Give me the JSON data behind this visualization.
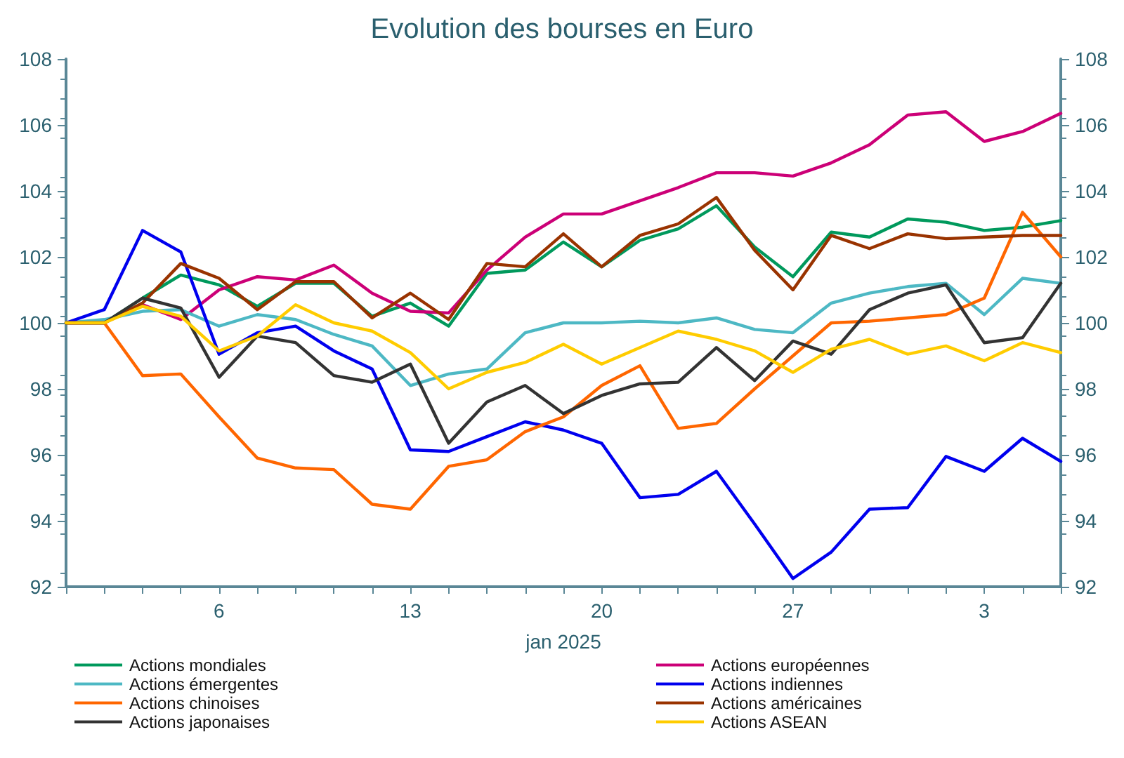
{
  "chart_data": {
    "type": "line",
    "title": "Evolution des bourses en Euro",
    "xlabel": "jan 2025",
    "categories": [
      null,
      null,
      null,
      null,
      "6",
      null,
      null,
      null,
      null,
      "13",
      null,
      null,
      null,
      null,
      "20",
      null,
      null,
      null,
      null,
      "27",
      null,
      null,
      null,
      null,
      "3",
      null,
      null
    ],
    "ylim": [
      92,
      108
    ],
    "yticks": [
      92,
      94,
      96,
      98,
      100,
      102,
      104,
      106,
      108
    ],
    "y2lim": [
      92,
      108
    ],
    "y2ticks": [
      92,
      94,
      96,
      98,
      100,
      102,
      104,
      106,
      108
    ],
    "grid": false,
    "legend": "bottom",
    "marker": "none",
    "line_style": "solid",
    "series": [
      {
        "name": "Actions mondiales",
        "color": "#00995c",
        "values": [
          100,
          100,
          100.75,
          101.45,
          101.15,
          100.5,
          101.2,
          101.2,
          100.2,
          100.6,
          99.9,
          101.5,
          101.6,
          102.45,
          101.7,
          102.5,
          102.85,
          103.55,
          102.3,
          101.4,
          102.75,
          102.6,
          103.15,
          103.05,
          102.8,
          102.9,
          103.1
        ]
      },
      {
        "name": "Actions européennes",
        "color": "#cc0077",
        "values": [
          100,
          100,
          100.55,
          100.1,
          101.0,
          101.4,
          101.3,
          101.75,
          100.9,
          100.35,
          100.3,
          101.6,
          102.6,
          103.3,
          103.3,
          103.7,
          104.1,
          104.55,
          104.55,
          104.45,
          104.85,
          105.4,
          106.3,
          106.4,
          105.5,
          105.8,
          106.35
        ]
      },
      {
        "name": "Actions émergentes",
        "color": "#4db8c4",
        "values": [
          100,
          100.1,
          100.35,
          100.4,
          99.9,
          100.25,
          100.1,
          99.65,
          99.3,
          98.1,
          98.45,
          98.6,
          99.7,
          100.0,
          100.0,
          100.05,
          100.0,
          100.15,
          99.8,
          99.7,
          100.6,
          100.9,
          101.1,
          101.2,
          100.25,
          101.35,
          101.2
        ]
      },
      {
        "name": "Actions indiennes",
        "color": "#0000ee",
        "values": [
          100,
          100.4,
          102.8,
          102.15,
          99.05,
          99.7,
          99.9,
          99.15,
          98.6,
          96.15,
          96.1,
          96.55,
          97.0,
          96.75,
          96.35,
          94.7,
          94.8,
          95.5,
          93.9,
          92.25,
          93.05,
          94.35,
          94.4,
          95.95,
          95.5,
          96.5,
          95.8
        ]
      },
      {
        "name": "Actions chinoises",
        "color": "#ff6600",
        "values": [
          100,
          100,
          98.4,
          98.45,
          97.15,
          95.9,
          95.6,
          95.55,
          94.5,
          94.35,
          95.65,
          95.85,
          96.7,
          97.15,
          98.1,
          98.7,
          96.8,
          96.95,
          98.0,
          99.0,
          100.0,
          100.05,
          100.15,
          100.25,
          100.75,
          103.35,
          102.0
        ]
      },
      {
        "name": "Actions américaines",
        "color": "#993300",
        "values": [
          100,
          100,
          100.6,
          101.8,
          101.35,
          100.4,
          101.25,
          101.25,
          100.15,
          100.9,
          100.1,
          101.8,
          101.7,
          102.7,
          101.7,
          102.65,
          103.0,
          103.8,
          102.2,
          101.0,
          102.65,
          102.25,
          102.7,
          102.55,
          102.6,
          102.65,
          102.65
        ]
      },
      {
        "name": "Actions japonaises",
        "color": "#333333",
        "values": [
          100,
          100,
          100.75,
          100.45,
          98.35,
          99.6,
          99.4,
          98.4,
          98.2,
          98.75,
          96.35,
          97.6,
          98.1,
          97.25,
          97.8,
          98.15,
          98.2,
          99.25,
          98.25,
          99.45,
          99.05,
          100.4,
          100.9,
          101.15,
          99.4,
          99.55,
          101.2
        ]
      },
      {
        "name": "Actions ASEAN",
        "color": "#ffcc00",
        "values": [
          100,
          100,
          100.5,
          100.2,
          99.15,
          99.6,
          100.55,
          100.0,
          99.75,
          99.1,
          98.0,
          98.5,
          98.8,
          99.35,
          98.75,
          99.25,
          99.75,
          99.5,
          99.15,
          98.5,
          99.2,
          99.5,
          99.05,
          99.3,
          98.85,
          99.4,
          99.1
        ]
      }
    ]
  }
}
